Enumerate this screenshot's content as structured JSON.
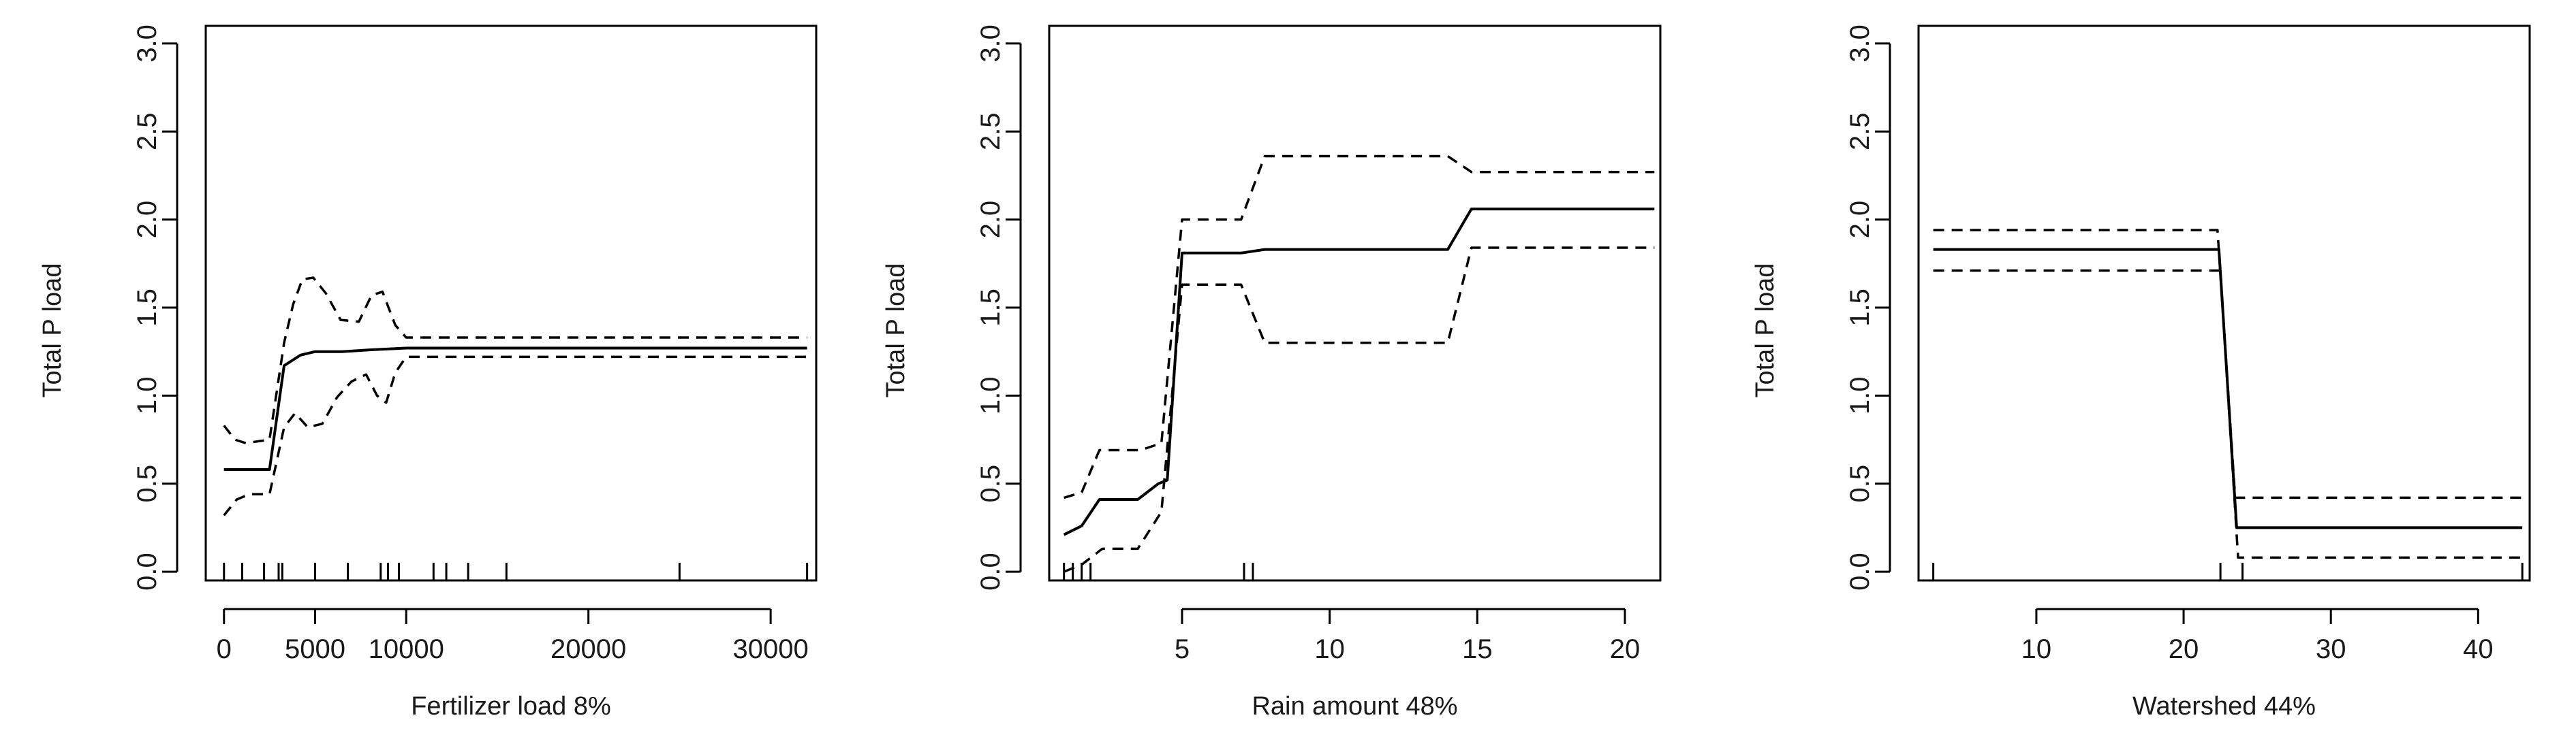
{
  "chart_data": [
    {
      "type": "line",
      "xlabel": "Fertilizer load 8%",
      "ylabel": "Total P load",
      "xlim": [
        -1000,
        32500
      ],
      "ylim": [
        -0.05,
        3.1
      ],
      "xticks": [
        0,
        5000,
        10000,
        20000,
        30000
      ],
      "xtick_labels": [
        "0",
        "5000",
        "10000",
        "20000",
        "30000"
      ],
      "yticks": [
        0.0,
        0.5,
        1.0,
        1.5,
        2.0,
        2.5,
        3.0
      ],
      "ytick_labels": [
        "0.0",
        "0.5",
        "1.0",
        "1.5",
        "2.0",
        "2.5",
        "3.0"
      ],
      "rug": [
        0,
        1000,
        2200,
        3000,
        3200,
        5000,
        6800,
        8600,
        9000,
        9600,
        11500,
        12200,
        13400,
        15500,
        25000,
        32000
      ],
      "series": [
        {
          "style": "solid",
          "x": [
            0,
            2500,
            3300,
            4200,
            5000,
            6500,
            8000,
            10000,
            12000,
            32000
          ],
          "y": [
            0.58,
            0.58,
            1.17,
            1.23,
            1.25,
            1.25,
            1.26,
            1.27,
            1.27,
            1.27
          ]
        },
        {
          "style": "dashed",
          "x": [
            0,
            600,
            1200,
            2500,
            3300,
            3800,
            4300,
            4900,
            5600,
            6400,
            7400,
            8100,
            8700,
            9400,
            10000,
            32000
          ],
          "y": [
            0.83,
            0.75,
            0.73,
            0.75,
            1.3,
            1.52,
            1.66,
            1.67,
            1.58,
            1.43,
            1.42,
            1.57,
            1.59,
            1.4,
            1.33,
            1.33
          ]
        },
        {
          "style": "dashed",
          "x": [
            0,
            700,
            1400,
            2500,
            3300,
            3900,
            4600,
            5400,
            6200,
            7000,
            7800,
            8400,
            8900,
            9400,
            10000,
            32000
          ],
          "y": [
            0.32,
            0.41,
            0.44,
            0.44,
            0.82,
            0.9,
            0.82,
            0.84,
            0.99,
            1.08,
            1.12,
            1.0,
            0.96,
            1.13,
            1.22,
            1.22
          ]
        }
      ]
    },
    {
      "type": "line",
      "xlabel": "Rain amount 48%",
      "ylabel": "Total P load",
      "xlim": [
        0.5,
        21.2
      ],
      "ylim": [
        -0.05,
        3.1
      ],
      "xticks": [
        5,
        10,
        15,
        20
      ],
      "xtick_labels": [
        "5",
        "10",
        "15",
        "20"
      ],
      "yticks": [
        0.0,
        0.5,
        1.0,
        1.5,
        2.0,
        2.5,
        3.0
      ],
      "ytick_labels": [
        "0.0",
        "0.5",
        "1.0",
        "1.5",
        "2.0",
        "2.5",
        "3.0"
      ],
      "rug": [
        1.0,
        1.3,
        1.6,
        1.9,
        7.1,
        7.4
      ],
      "series": [
        {
          "style": "solid",
          "x": [
            1.0,
            1.6,
            2.2,
            3.5,
            4.2,
            4.5,
            5.0,
            7.0,
            7.8,
            14.0,
            14.8,
            21.0
          ],
          "y": [
            0.21,
            0.26,
            0.41,
            0.41,
            0.5,
            0.52,
            1.81,
            1.81,
            1.83,
            1.83,
            2.06,
            2.06
          ]
        },
        {
          "style": "dashed",
          "x": [
            1.0,
            1.6,
            2.2,
            3.6,
            4.3,
            5.0,
            7.0,
            7.8,
            14.0,
            14.8,
            21.0
          ],
          "y": [
            0.42,
            0.45,
            0.69,
            0.69,
            0.73,
            2.0,
            2.0,
            2.36,
            2.36,
            2.27,
            2.27
          ]
        },
        {
          "style": "dashed",
          "x": [
            1.0,
            1.6,
            2.3,
            3.5,
            4.3,
            5.0,
            7.0,
            7.8,
            14.0,
            14.8,
            21.0
          ],
          "y": [
            0.0,
            0.04,
            0.13,
            0.13,
            0.34,
            1.63,
            1.63,
            1.3,
            1.3,
            1.84,
            1.84
          ]
        }
      ]
    },
    {
      "type": "line",
      "xlabel": "Watershed 44%",
      "ylabel": "Total P load",
      "xlim": [
        2.0,
        43.5
      ],
      "ylim": [
        -0.05,
        3.1
      ],
      "xticks": [
        10,
        20,
        30,
        40
      ],
      "xtick_labels": [
        "10",
        "20",
        "30",
        "40"
      ],
      "yticks": [
        0.0,
        0.5,
        1.0,
        1.5,
        2.0,
        2.5,
        3.0
      ],
      "ytick_labels": [
        "0.0",
        "0.5",
        "1.0",
        "1.5",
        "2.0",
        "2.5",
        "3.0"
      ],
      "rug": [
        3,
        22.5,
        24,
        43
      ],
      "series": [
        {
          "style": "solid",
          "x": [
            3,
            22.4,
            23.6,
            43
          ],
          "y": [
            1.83,
            1.83,
            0.25,
            0.25
          ]
        },
        {
          "style": "dashed",
          "x": [
            3,
            22.3,
            23.5,
            43
          ],
          "y": [
            1.94,
            1.94,
            0.42,
            0.42
          ]
        },
        {
          "style": "dashed",
          "x": [
            3,
            22.5,
            23.7,
            43
          ],
          "y": [
            1.71,
            1.71,
            0.08,
            0.08
          ]
        }
      ]
    }
  ]
}
